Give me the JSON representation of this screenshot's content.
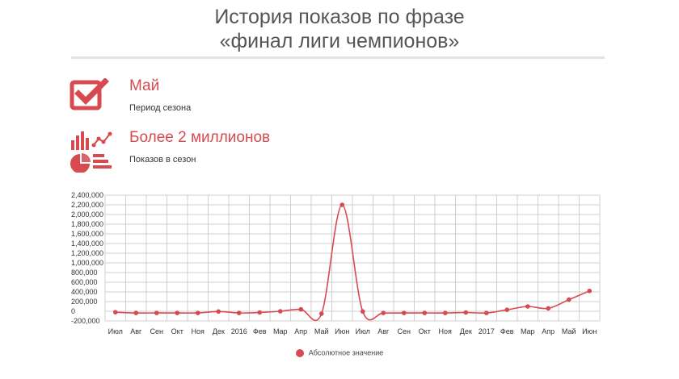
{
  "header": {
    "title_line1": "История показов по фразе",
    "title_line2": "«финал лиги чемпионов»"
  },
  "stats": [
    {
      "value": "Май",
      "label": "Период сезона",
      "icon": "checkbox-check-icon"
    },
    {
      "value": "Более 2 миллионов",
      "label": "Показов в сезон",
      "icon": "charts-icon"
    }
  ],
  "colors": {
    "accent": "#d64a50",
    "grid": "#cfcfcf",
    "divider": "#e3e3e3"
  },
  "chart_data": {
    "type": "line",
    "categories": [
      "Июл",
      "Авг",
      "Сен",
      "Окт",
      "Ноя",
      "Дек",
      "2016",
      "Фев",
      "Мар",
      "Апр",
      "Май",
      "Июн",
      "Июл",
      "Авг",
      "Сен",
      "Окт",
      "Ноя",
      "Дек",
      "2017",
      "Фев",
      "Мар",
      "Апр",
      "Май",
      "Июн"
    ],
    "series": [
      {
        "name": "Абсолютное значение",
        "values": [
          -20000,
          -35000,
          -35000,
          -35000,
          -35000,
          -5000,
          -35000,
          -25000,
          0,
          40000,
          -50000,
          2200000,
          -5000,
          -35000,
          -35000,
          -35000,
          -35000,
          -25000,
          -35000,
          30000,
          100000,
          60000,
          240000,
          420000
        ]
      }
    ],
    "yticks": [
      "2,400,000",
      "2,200,000",
      "2,000,000",
      "1,800,000",
      "1,600,000",
      "1,400,000",
      "1,200,000",
      "1,000,000",
      "800,000",
      "600,000",
      "400,000",
      "200,000",
      "0",
      "-200,000"
    ],
    "ylim": [
      -200000,
      2400000
    ],
    "grid": true,
    "legend_position": "bottom",
    "legend_label": "Абсолютное значение"
  }
}
